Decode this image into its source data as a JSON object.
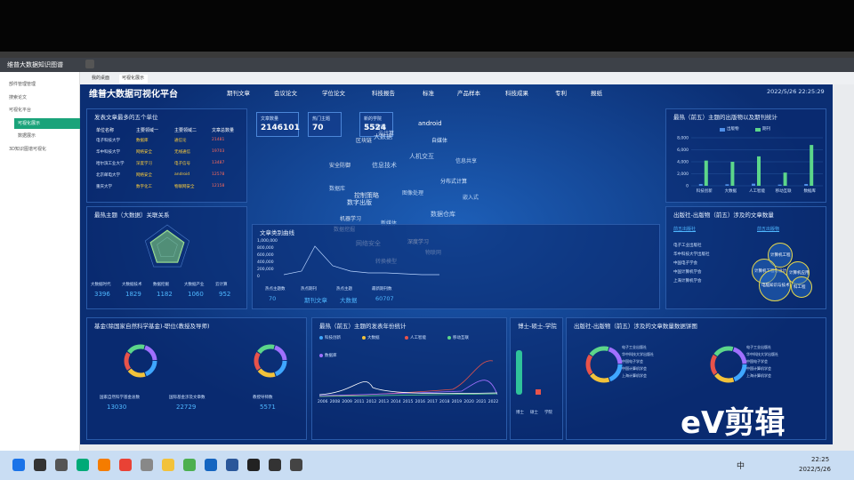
{
  "window": {
    "app_title": "维普大数据知识图谱",
    "tabs": [
      "我的桌面",
      "可视化展示"
    ]
  },
  "sidebar": {
    "items": [
      "部件管理管理",
      "搜索论文",
      "可视化平台",
      "可视化展示",
      "数据展示",
      "3D知识图谱可视化"
    ]
  },
  "dashboard": {
    "title": "维普大数据可视化平台",
    "nav": [
      "期刊文章",
      "会议论文",
      "学位论文",
      "科技报告",
      "标准",
      "产品样本",
      "科技成果",
      "专利",
      "报纸"
    ],
    "datetime": "2022/5/26 22:25:29",
    "top_units": {
      "title": "发表文章最多的五个单位",
      "headers": [
        "单位名称",
        "主要领域一",
        "主要领域二",
        "文章总数量"
      ],
      "rows": [
        [
          "电子科技大学",
          "数据库",
          "通信论",
          "21481"
        ],
        [
          "华中科技大学",
          "网络安全",
          "无线通信",
          "19703"
        ],
        [
          "哈尔滨工业大学",
          "深度学习",
          "电子信号",
          "13487"
        ],
        [
          "北京邮电大学",
          "网络安全",
          "android",
          "12578"
        ],
        [
          "重庆大学",
          "数字化工",
          "物联网安全",
          "12158"
        ]
      ]
    },
    "hot_topic": {
      "title": "最热主题（大数据）关联关系",
      "stats": [
        {
          "label": "大数据时代",
          "value": "3396"
        },
        {
          "label": "大数据技术",
          "value": "1829"
        },
        {
          "label": "数据挖掘",
          "value": "1182"
        },
        {
          "label": "大数据产业",
          "value": "1060"
        },
        {
          "label": "云计算",
          "value": "952"
        }
      ]
    },
    "counters": [
      {
        "label": "文章数量",
        "value": "2146101"
      },
      {
        "label": "热门主题",
        "value": "70"
      },
      {
        "label": "新的学院",
        "value": "5524"
      }
    ],
    "word_cloud": [
      "android",
      "人工智能",
      "云计算",
      "大数据",
      "区块链",
      "自媒体",
      "人机交互",
      "信息共享",
      "安全防御",
      "信息技术",
      "分布式计算",
      "数据库",
      "控制策略",
      "图像处理",
      "嵌入式",
      "数字出版",
      "机器学习",
      "新媒体",
      "数据仓库",
      "数据挖掘",
      "深度学习",
      "网络安全",
      "物联网",
      "转换模型"
    ],
    "category_curve": {
      "title": "文章类别曲线",
      "yticks": [
        "1,000,000",
        "800,000",
        "600,000",
        "400,000",
        "200,000",
        "0"
      ],
      "stats": [
        {
          "label": "热点主题数",
          "value": "70"
        },
        {
          "label": "热点期刊",
          "value": "期刊文章"
        },
        {
          "label": "热点主题",
          "value": "大数据"
        },
        {
          "label": "最新期刊数",
          "value": "60707"
        }
      ]
    },
    "publication_stats": {
      "title": "最热（前五）主题的出版物以及期刊统计",
      "categories": [
        "科技创新",
        "大数据",
        "人工智能",
        "移动互联",
        "数据库"
      ],
      "series": [
        {
          "name": "出版物",
          "color": "#4f8fe8",
          "values": [
            300,
            250,
            350,
            200,
            300
          ]
        },
        {
          "name": "期刊",
          "color": "#5cd68a",
          "values": [
            4200,
            4000,
            4900,
            2200,
            6800
          ]
        }
      ],
      "ylim": [
        0,
        8000
      ],
      "yticks": [
        0,
        {
          "value": 2000,
          "label": "2,000"
        },
        {
          "value": 4000,
          "label": "4,000"
        },
        {
          "value": 6000,
          "label": "6,000"
        },
        {
          "value": 8000,
          "label": "8,000"
        }
      ]
    },
    "publisher_bubbles": {
      "title": "出版社-出版物（前五）涉及的文章数量",
      "tabs": [
        "前五出版社",
        "前五出版物"
      ],
      "items": [
        "电子工业出版社",
        "华中科技大学出版社",
        "中国电子学会",
        "中国计算机学会",
        "上海计算机学会"
      ],
      "bubbles": [
        "计算机工程",
        "计算机工程与设计",
        "电脑知识与技术",
        "计算机应用",
        "科工程"
      ]
    },
    "fund": {
      "title": "基金(除国家自然科学基金)-职位(教授及导师)",
      "stats": [
        {
          "label": "国家自然科学基金总数",
          "value": "13030"
        },
        {
          "label": "国际基金涉及文章数",
          "value": "22729"
        },
        {
          "label": "教授导师数",
          "value": "5571"
        }
      ]
    },
    "year_stats": {
      "title": "最热（前五）主题的发表年份统计",
      "legend": [
        "科技创新",
        "大数据",
        "人工智能",
        "移动互联",
        "数据库"
      ],
      "years": [
        "2006",
        "2008",
        "2009",
        "2011",
        "2012",
        "2013",
        "2014",
        "2015",
        "2016",
        "2017",
        "2018",
        "2019",
        "2020",
        "2021",
        "2022"
      ]
    },
    "degree": {
      "title": "博士-硕士-学院",
      "legend": [
        "博士",
        "硕士",
        "学院"
      ]
    },
    "publisher_pie": {
      "title": "出版社-出版物（前五）涉及的文章数量数据饼图"
    }
  },
  "taskbar": {
    "time": "22:25",
    "date": "2022/5/26",
    "ime": "中"
  },
  "watermark": "eV剪辑"
}
